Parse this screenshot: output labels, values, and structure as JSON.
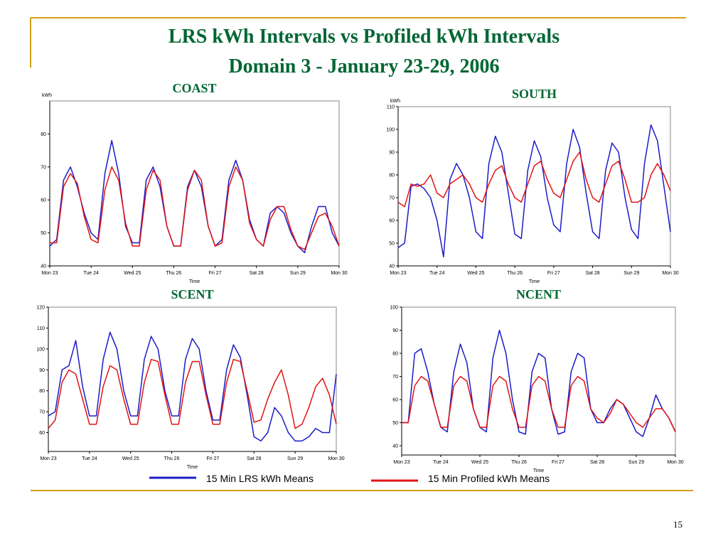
{
  "title": [
    "LRS kWh Intervals vs Profiled kWh Intervals",
    "Domain 3 - January 23-29, 2006"
  ],
  "page_number": "15",
  "chart_data": [
    {
      "type": "line",
      "title": "COAST",
      "y_label": "kWh",
      "x_label": "Time",
      "x": [
        0,
        4,
        8,
        12,
        16,
        20,
        24,
        28,
        32,
        36,
        40,
        44,
        48,
        52,
        56,
        60,
        64,
        68,
        72,
        76,
        80,
        84,
        88,
        92,
        96,
        100,
        104,
        108,
        112,
        116,
        120,
        124,
        128,
        132,
        136,
        140,
        144,
        148,
        152,
        156,
        160,
        164,
        168
      ],
      "xlim": [
        0,
        168
      ],
      "xticks": [
        {
          "value": 0,
          "label": "Mon 23"
        },
        {
          "value": 24,
          "label": "Tue 24"
        },
        {
          "value": 48,
          "label": "Wed 25"
        },
        {
          "value": 72,
          "label": "Thu 26"
        },
        {
          "value": 96,
          "label": "Fri 27"
        },
        {
          "value": 120,
          "label": "Sat 28"
        },
        {
          "value": 144,
          "label": "Sun 29"
        },
        {
          "value": 168,
          "label": "Mon 30"
        }
      ],
      "ylim": [
        40,
        90
      ],
      "yticks": [
        40,
        50,
        60,
        70,
        80
      ],
      "series": [
        {
          "name": "15 Min LRS kWh Means",
          "color": "#1c1cc8",
          "values": [
            46,
            48,
            66,
            70,
            64,
            56,
            50,
            48,
            68,
            78,
            68,
            52,
            47,
            47,
            66,
            70,
            64,
            52,
            46,
            46,
            64,
            69,
            64,
            52,
            46,
            48,
            66,
            72,
            66,
            54,
            48,
            46,
            56,
            58,
            56,
            50,
            46,
            44,
            52,
            58,
            58,
            50,
            46
          ]
        },
        {
          "name": "15 Min Profiled kWh Means",
          "color": "#e01414",
          "values": [
            47,
            47,
            64,
            68,
            65,
            55,
            48,
            47,
            63,
            70,
            66,
            53,
            46,
            46,
            63,
            69,
            66,
            52,
            46,
            46,
            63,
            69,
            66,
            52,
            46,
            47,
            64,
            70,
            66,
            53,
            48,
            46,
            54,
            58,
            58,
            51,
            46,
            45,
            50,
            55,
            56,
            52,
            46
          ]
        }
      ]
    },
    {
      "type": "line",
      "title": "SOUTH",
      "y_label": "kWh",
      "x_label": "Time",
      "x": [
        0,
        4,
        8,
        12,
        16,
        20,
        24,
        28,
        32,
        36,
        40,
        44,
        48,
        52,
        56,
        60,
        64,
        68,
        72,
        76,
        80,
        84,
        88,
        92,
        96,
        100,
        104,
        108,
        112,
        116,
        120,
        124,
        128,
        132,
        136,
        140,
        144,
        148,
        152,
        156,
        160,
        164,
        168
      ],
      "xlim": [
        0,
        168
      ],
      "xticks": [
        {
          "value": 0,
          "label": "Mon 23"
        },
        {
          "value": 24,
          "label": "Tue 24"
        },
        {
          "value": 48,
          "label": "Wed 25"
        },
        {
          "value": 72,
          "label": "Thu 26"
        },
        {
          "value": 96,
          "label": "Fri 27"
        },
        {
          "value": 120,
          "label": "Sat 28"
        },
        {
          "value": 144,
          "label": "Sun 29"
        },
        {
          "value": 168,
          "label": "Mon 30"
        }
      ],
      "ylim": [
        40,
        110
      ],
      "yticks": [
        40,
        50,
        60,
        70,
        80,
        90,
        100,
        110
      ],
      "series": [
        {
          "name": "15 Min LRS kWh Means",
          "color": "#1c1cc8",
          "values": [
            48,
            50,
            75,
            76,
            74,
            70,
            60,
            44,
            78,
            85,
            80,
            70,
            55,
            52,
            85,
            97,
            90,
            72,
            54,
            52,
            82,
            95,
            88,
            70,
            58,
            55,
            85,
            100,
            92,
            72,
            55,
            52,
            82,
            94,
            90,
            70,
            56,
            52,
            85,
            102,
            95,
            75,
            55
          ]
        },
        {
          "name": "15 Min Profiled kWh Means",
          "color": "#e01414",
          "values": [
            68,
            66,
            76,
            75,
            76,
            80,
            72,
            70,
            76,
            78,
            80,
            76,
            70,
            68,
            76,
            82,
            84,
            76,
            70,
            68,
            76,
            84,
            86,
            78,
            72,
            70,
            78,
            86,
            90,
            78,
            70,
            68,
            76,
            84,
            86,
            78,
            68,
            68,
            70,
            80,
            85,
            80,
            73
          ]
        }
      ]
    },
    {
      "type": "line",
      "title": "SCENT",
      "x_label": "Time",
      "x": [
        0,
        4,
        8,
        12,
        16,
        20,
        24,
        28,
        32,
        36,
        40,
        44,
        48,
        52,
        56,
        60,
        64,
        68,
        72,
        76,
        80,
        84,
        88,
        92,
        96,
        100,
        104,
        108,
        112,
        116,
        120,
        124,
        128,
        132,
        136,
        140,
        144,
        148,
        152,
        156,
        160,
        164,
        168
      ],
      "xlim": [
        0,
        168
      ],
      "xticks": [
        {
          "value": 0,
          "label": "Mon 23"
        },
        {
          "value": 24,
          "label": "Tue 24"
        },
        {
          "value": 48,
          "label": "Wed 25"
        },
        {
          "value": 72,
          "label": "Thu 26"
        },
        {
          "value": 96,
          "label": "Fri 27"
        },
        {
          "value": 120,
          "label": "Sat 28"
        },
        {
          "value": 144,
          "label": "Sun 29"
        },
        {
          "value": 168,
          "label": "Mon 30"
        }
      ],
      "ylim": [
        51,
        120
      ],
      "yticks": [
        60,
        70,
        80,
        90,
        100,
        110,
        120
      ],
      "series": [
        {
          "name": "15 Min LRS kWh Means",
          "color": "#1c1cc8",
          "values": [
            68,
            70,
            90,
            92,
            104,
            82,
            68,
            68,
            95,
            108,
            100,
            80,
            68,
            68,
            95,
            106,
            100,
            80,
            68,
            68,
            95,
            105,
            100,
            80,
            66,
            66,
            90,
            102,
            96,
            78,
            58,
            56,
            60,
            72,
            68,
            60,
            56,
            56,
            58,
            62,
            60,
            60,
            88
          ]
        },
        {
          "name": "15 Min Profiled kWh Means",
          "color": "#e01414",
          "values": [
            62,
            66,
            84,
            90,
            88,
            76,
            64,
            64,
            82,
            92,
            90,
            76,
            64,
            64,
            84,
            95,
            94,
            78,
            64,
            64,
            84,
            94,
            94,
            78,
            64,
            64,
            84,
            95,
            94,
            80,
            65,
            66,
            76,
            84,
            90,
            78,
            62,
            64,
            72,
            82,
            86,
            78,
            64
          ]
        }
      ]
    },
    {
      "type": "line",
      "title": "NCENT",
      "x_label": "Time",
      "x": [
        0,
        4,
        8,
        12,
        16,
        20,
        24,
        28,
        32,
        36,
        40,
        44,
        48,
        52,
        56,
        60,
        64,
        68,
        72,
        76,
        80,
        84,
        88,
        92,
        96,
        100,
        104,
        108,
        112,
        116,
        120,
        124,
        128,
        132,
        136,
        140,
        144,
        148,
        152,
        156,
        160,
        164,
        168
      ],
      "xlim": [
        0,
        168
      ],
      "xticks": [
        {
          "value": 0,
          "label": "Mon 23"
        },
        {
          "value": 24,
          "label": "Tue 24"
        },
        {
          "value": 48,
          "label": "Wed 25"
        },
        {
          "value": 72,
          "label": "Thu 26"
        },
        {
          "value": 96,
          "label": "Fri 27"
        },
        {
          "value": 120,
          "label": "Sat 28"
        },
        {
          "value": 144,
          "label": "Sun 29"
        },
        {
          "value": 168,
          "label": "Mon 30"
        }
      ],
      "ylim": [
        36,
        100
      ],
      "yticks": [
        40,
        50,
        60,
        70,
        80,
        90,
        100
      ],
      "series": [
        {
          "name": "15 Min LRS kWh Means",
          "color": "#1c1cc8",
          "values": [
            50,
            50,
            80,
            82,
            72,
            58,
            48,
            46,
            72,
            84,
            76,
            56,
            48,
            46,
            78,
            90,
            80,
            60,
            46,
            45,
            72,
            80,
            78,
            56,
            45,
            46,
            72,
            80,
            78,
            56,
            50,
            50,
            56,
            60,
            58,
            52,
            46,
            44,
            52,
            62,
            56,
            52,
            46
          ]
        },
        {
          "name": "15 Min Profiled kWh Means",
          "color": "#e01414",
          "values": [
            50,
            50,
            66,
            70,
            68,
            58,
            48,
            48,
            66,
            70,
            68,
            56,
            48,
            48,
            66,
            70,
            68,
            56,
            48,
            48,
            66,
            70,
            68,
            56,
            48,
            48,
            66,
            70,
            68,
            56,
            52,
            50,
            54,
            60,
            58,
            54,
            50,
            48,
            52,
            56,
            56,
            52,
            46
          ]
        }
      ]
    }
  ]
}
